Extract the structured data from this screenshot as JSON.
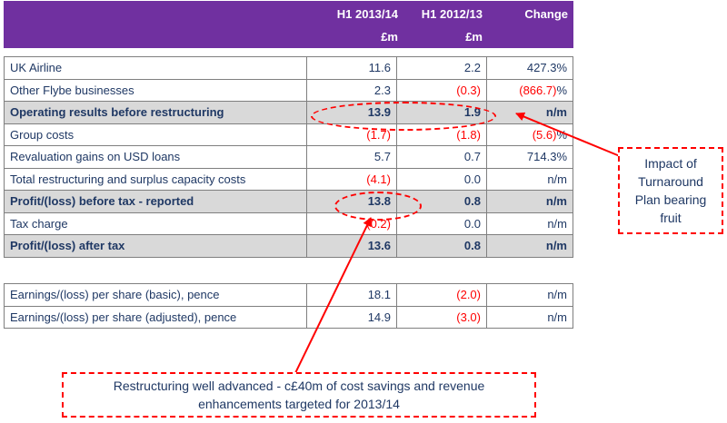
{
  "header": {
    "col1": "H1 2013/14",
    "col2": "H1 2012/13",
    "col3": "Change",
    "unit1": "£m",
    "unit2": "£m"
  },
  "rows": [
    {
      "label": "UK Airline",
      "v1": "11.6",
      "v2": "2.2",
      "ch": "427.3%"
    },
    {
      "label": "Other Flybe businesses",
      "v1": "2.3",
      "v2": "(0.3)",
      "ch": "(866.7)",
      "ch_suffix": "%"
    },
    {
      "label": "Operating results before restructuring",
      "v1": "13.9",
      "v2": "1.9",
      "ch": "n/m"
    },
    {
      "label": "Group costs",
      "v1": "(1.7)",
      "v2": "(1.8)",
      "ch": "(5.6)",
      "ch_suffix": "%"
    },
    {
      "label": "Revaluation gains on USD loans",
      "v1": "5.7",
      "v2": "0.7",
      "ch": "714.3%"
    },
    {
      "label": "Total restructuring and surplus capacity costs",
      "v1": "(4.1)",
      "v2": "0.0",
      "ch": "n/m"
    },
    {
      "label": "Profit/(loss) before tax - reported",
      "v1": "13.8",
      "v2": "0.8",
      "ch": "n/m"
    },
    {
      "label": "Tax charge",
      "v1": "(0.2)",
      "v2": "0.0",
      "ch": "n/m"
    },
    {
      "label": "Profit/(loss) after tax",
      "v1": "13.6",
      "v2": "0.8",
      "ch": "n/m"
    }
  ],
  "eps_rows": [
    {
      "label": "Earnings/(loss) per share (basic), pence",
      "v1": "18.1",
      "v2": "(2.0)",
      "ch": "n/m"
    },
    {
      "label": "Earnings/(loss) per share (adjusted), pence",
      "v1": "14.9",
      "v2": "(3.0)",
      "ch": "n/m"
    }
  ],
  "callouts": {
    "turnaround": "Impact of Turnaround Plan bearing fruit",
    "restructuring": "Restructuring well advanced - c£40m of cost savings and revenue enhancements targeted for 2013/14"
  },
  "colors": {
    "header_bg": "#7030a0",
    "text": "#1f3864",
    "negative": "#ff0000",
    "highlight_row": "#d9d9d9",
    "annotation": "#ff0000"
  }
}
